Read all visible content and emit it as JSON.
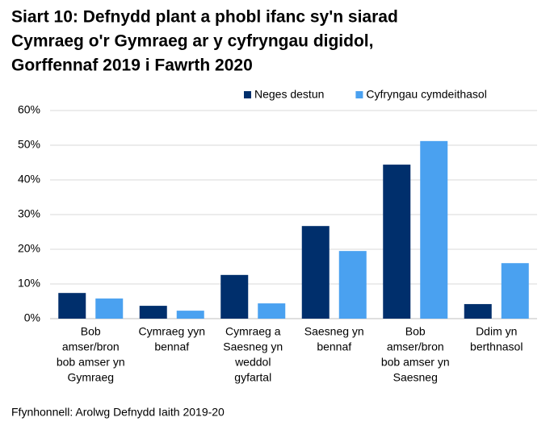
{
  "chart_data": {
    "type": "bar",
    "title": [
      "Siart 10: Defnydd plant a phobl ifanc sy'n siarad",
      "Cymraeg o'r Gymraeg ar y cyfryngau digidol,",
      "Gorffennaf 2019 i Fawrth 2020"
    ],
    "categories": [
      [
        "Bob",
        "amser/bron",
        "bob amser yn",
        "Gymraeg"
      ],
      [
        "Cymraeg yyn",
        "bennaf"
      ],
      [
        "Cymraeg a",
        "Saesneg yn",
        "weddol",
        "gyfartal"
      ],
      [
        "Saesneg yn",
        "bennaf"
      ],
      [
        "Bob",
        "amser/bron",
        "bob amser yn",
        "Saesneg"
      ],
      [
        "Ddim yn",
        "berthnasol"
      ]
    ],
    "series": [
      {
        "name": "Neges destun",
        "color": "#002f6c",
        "values": [
          7.4,
          3.7,
          12.6,
          26.7,
          44.4,
          4.2
        ]
      },
      {
        "name": "Cyfryngau cymdeithasol",
        "color": "#4aa1f0",
        "values": [
          5.8,
          2.3,
          4.4,
          19.5,
          51.2,
          16.0
        ]
      }
    ],
    "ylim": [
      0,
      60
    ],
    "yticks": [
      {
        "value": 0,
        "label": "0%"
      },
      {
        "value": 10,
        "label": "10%"
      },
      {
        "value": 20,
        "label": "20%"
      },
      {
        "value": 30,
        "label": "30%"
      },
      {
        "value": 40,
        "label": "40%"
      },
      {
        "value": 50,
        "label": "50%"
      },
      {
        "value": 60,
        "label": "60%"
      }
    ],
    "grid": true,
    "legend": "top",
    "source": "Ffynhonnell: Arolwg Defnydd Iaith 2019-20"
  }
}
